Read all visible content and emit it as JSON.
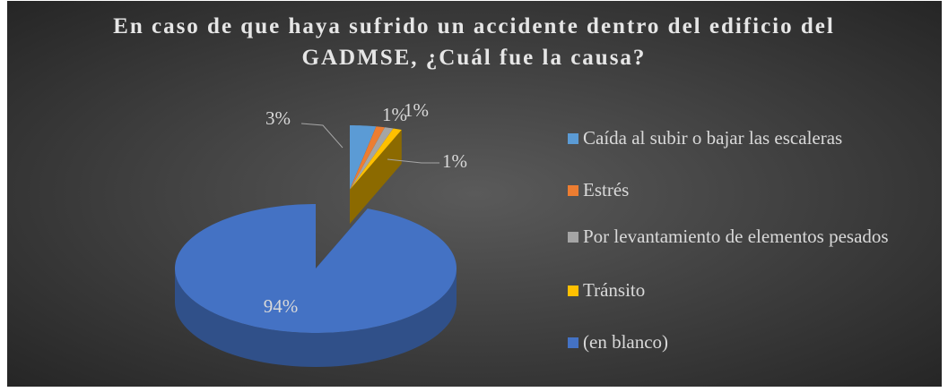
{
  "chart_data": {
    "type": "pie3d",
    "title": "En caso de que haya sufrido un accidente dentro del edificio del GADMSE, ¿Cuál fue la causa?",
    "categories": [
      "Caída al subir o bajar las escaleras",
      "Estrés",
      "Por levantamiento de elementos pesados",
      "Tránsito",
      "(en blanco)"
    ],
    "values": [
      3,
      1,
      1,
      1,
      94
    ],
    "value_labels": [
      "3%",
      "1%",
      "1%",
      "1%",
      "94%"
    ],
    "colors": [
      "#5b9bd5",
      "#ed7d31",
      "#a5a5a5",
      "#ffc000",
      "#4472c4"
    ],
    "legend": "right"
  }
}
